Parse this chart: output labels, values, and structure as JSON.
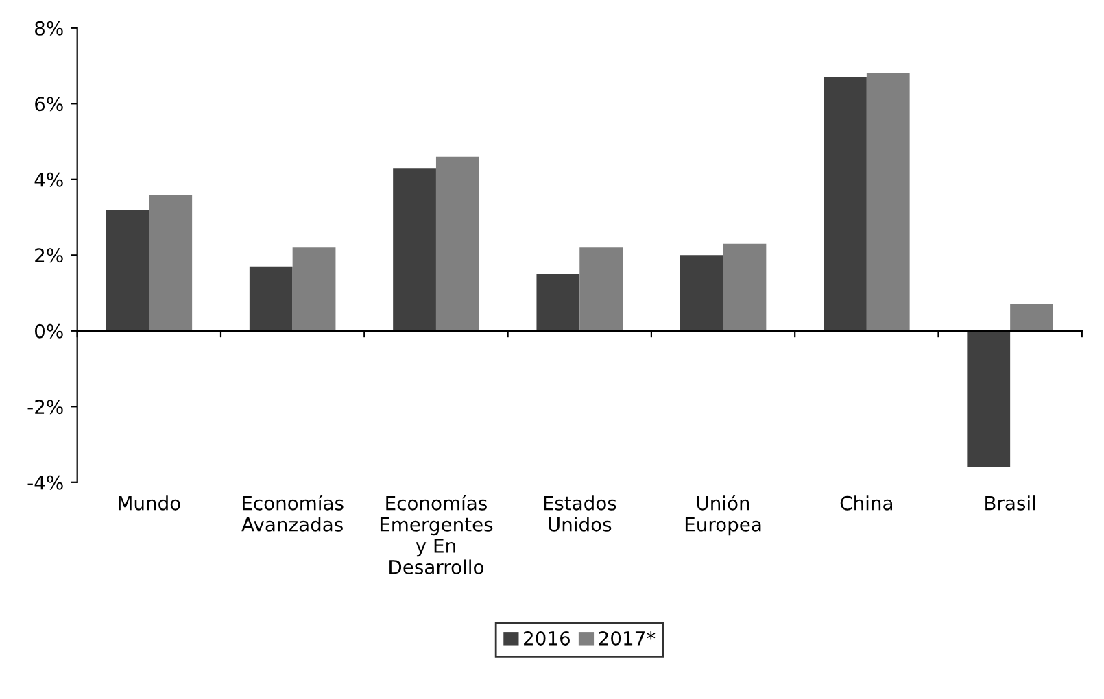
{
  "chart_data": {
    "type": "bar",
    "categories": [
      "Mundo",
      "Economías\nAvanzadas",
      "Economías\nEmergentes\ny En\nDesarrollo",
      "Estados\nUnidos",
      "Unión\nEuropea",
      "China",
      "Brasil"
    ],
    "series": [
      {
        "name": "2016",
        "color": "#404040",
        "values": [
          3.2,
          1.7,
          4.3,
          1.5,
          2.0,
          6.7,
          -3.6
        ]
      },
      {
        "name": "2017*",
        "color": "#808080",
        "values": [
          3.6,
          2.2,
          4.6,
          2.2,
          2.3,
          6.8,
          0.7
        ]
      }
    ],
    "ylim": [
      -4,
      8
    ],
    "yticks": [
      {
        "value": -4,
        "label": "-4%"
      },
      {
        "value": -2,
        "label": "-2%"
      },
      {
        "value": 0,
        "label": "0%"
      },
      {
        "value": 2,
        "label": "2%"
      },
      {
        "value": 4,
        "label": "4%"
      },
      {
        "value": 6,
        "label": "6%"
      },
      {
        "value": 8,
        "label": "8%"
      }
    ],
    "legend": "bottom"
  }
}
